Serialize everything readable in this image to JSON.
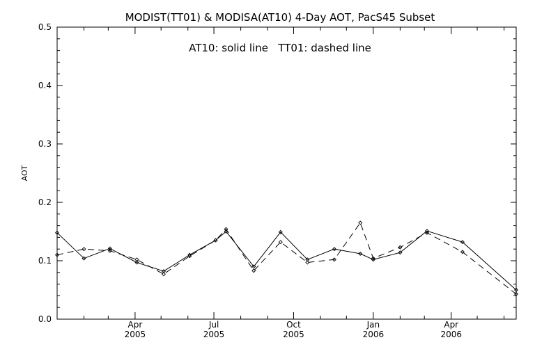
{
  "chart_data": {
    "type": "line",
    "title": "MODIST(TT01) & MODISA(AT10) 4-Day AOT, PacS45 Subset",
    "annotation": "AT10: solid line   TT01: dashed line",
    "ylabel": "AOT",
    "xlabel": "",
    "x_axis_type": "date",
    "xlim": [
      "2005-01-01",
      "2006-06-15"
    ],
    "ylim": [
      0.0,
      0.5
    ],
    "grid": false,
    "legend": "none",
    "y_ticks": [
      {
        "value": 0.0,
        "label": "0.0"
      },
      {
        "value": 0.1,
        "label": "0.1"
      },
      {
        "value": 0.2,
        "label": "0.2"
      },
      {
        "value": 0.3,
        "label": "0.3"
      },
      {
        "value": 0.4,
        "label": "0.4"
      },
      {
        "value": 0.5,
        "label": "0.5"
      }
    ],
    "x_ticks": [
      {
        "date": "2005-04-01",
        "month": "Apr",
        "year": "2005"
      },
      {
        "date": "2005-07-01",
        "month": "Jul",
        "year": "2005"
      },
      {
        "date": "2005-10-01",
        "month": "Oct",
        "year": "2005"
      },
      {
        "date": "2006-01-01",
        "month": "Jan",
        "year": "2006"
      },
      {
        "date": "2006-04-01",
        "month": "Apr",
        "year": "2006"
      }
    ],
    "series": [
      {
        "name": "AT10",
        "style": "solid",
        "color": "#000000",
        "points": [
          {
            "x": "2005-01-01",
            "y": 0.148
          },
          {
            "x": "2005-02-01",
            "y": 0.104
          },
          {
            "x": "2005-03-03",
            "y": 0.121
          },
          {
            "x": "2005-04-03",
            "y": 0.097
          },
          {
            "x": "2005-05-04",
            "y": 0.082
          },
          {
            "x": "2005-06-03",
            "y": 0.11
          },
          {
            "x": "2005-07-03",
            "y": 0.135
          },
          {
            "x": "2005-07-15",
            "y": 0.15
          },
          {
            "x": "2005-08-16",
            "y": 0.09
          },
          {
            "x": "2005-09-16",
            "y": 0.149
          },
          {
            "x": "2005-10-17",
            "y": 0.102
          },
          {
            "x": "2005-11-17",
            "y": 0.12
          },
          {
            "x": "2005-12-17",
            "y": 0.112
          },
          {
            "x": "2006-01-01",
            "y": 0.102
          },
          {
            "x": "2006-02-01",
            "y": 0.114
          },
          {
            "x": "2006-03-04",
            "y": 0.151
          },
          {
            "x": "2006-04-14",
            "y": 0.132
          },
          {
            "x": "2006-06-15",
            "y": 0.05
          }
        ]
      },
      {
        "name": "TT01",
        "style": "dashed",
        "color": "#000000",
        "points": [
          {
            "x": "2005-01-01",
            "y": 0.11
          },
          {
            "x": "2005-02-01",
            "y": 0.12
          },
          {
            "x": "2005-03-03",
            "y": 0.117
          },
          {
            "x": "2005-04-03",
            "y": 0.102
          },
          {
            "x": "2005-05-04",
            "y": 0.077
          },
          {
            "x": "2005-06-03",
            "y": 0.108
          },
          {
            "x": "2005-07-03",
            "y": 0.135
          },
          {
            "x": "2005-07-15",
            "y": 0.154
          },
          {
            "x": "2005-08-16",
            "y": 0.083
          },
          {
            "x": "2005-09-16",
            "y": 0.132
          },
          {
            "x": "2005-10-17",
            "y": 0.097
          },
          {
            "x": "2005-11-17",
            "y": 0.102
          },
          {
            "x": "2005-12-17",
            "y": 0.165
          },
          {
            "x": "2006-01-01",
            "y": 0.104
          },
          {
            "x": "2006-02-01",
            "y": 0.123
          },
          {
            "x": "2006-03-04",
            "y": 0.148
          },
          {
            "x": "2006-04-14",
            "y": 0.115
          },
          {
            "x": "2006-06-15",
            "y": 0.043
          }
        ]
      }
    ]
  }
}
